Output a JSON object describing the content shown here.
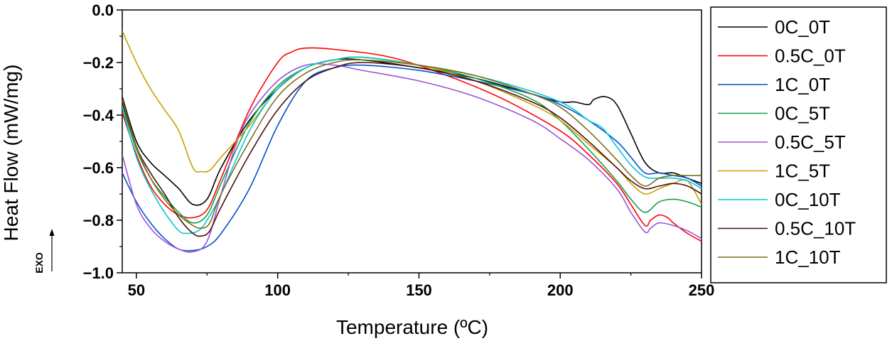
{
  "chart_data": {
    "type": "line",
    "title": "",
    "xlabel": "Temperature (ºC)",
    "ylabel": "Heat Flow (mW/mg)",
    "exo_label": "EXO",
    "xlim": [
      45,
      250
    ],
    "ylim": [
      -1.0,
      0.0
    ],
    "xticks": [
      50,
      100,
      150,
      200,
      250
    ],
    "xtick_labels": [
      "50",
      "100",
      "150",
      "200",
      "250"
    ],
    "yticks": [
      0.0,
      -0.2,
      -0.4,
      -0.6,
      -0.8,
      -1.0
    ],
    "ytick_labels": [
      "0.0",
      "−0.2",
      "−0.4",
      "−0.6",
      "−0.8",
      "−1.0"
    ],
    "legend_position": "right",
    "series": [
      {
        "name": "0C_0T",
        "color": "#000000",
        "points": [
          [
            45,
            -0.33
          ],
          [
            50,
            -0.5
          ],
          [
            55,
            -0.58
          ],
          [
            60,
            -0.63
          ],
          [
            65,
            -0.68
          ],
          [
            70,
            -0.74
          ],
          [
            75,
            -0.72
          ],
          [
            80,
            -0.6
          ],
          [
            90,
            -0.42
          ],
          [
            100,
            -0.3
          ],
          [
            110,
            -0.22
          ],
          [
            120,
            -0.19
          ],
          [
            130,
            -0.19
          ],
          [
            150,
            -0.22
          ],
          [
            170,
            -0.26
          ],
          [
            190,
            -0.32
          ],
          [
            200,
            -0.35
          ],
          [
            205,
            -0.35
          ],
          [
            210,
            -0.36
          ],
          [
            212,
            -0.34
          ],
          [
            216,
            -0.33
          ],
          [
            220,
            -0.36
          ],
          [
            225,
            -0.47
          ],
          [
            230,
            -0.58
          ],
          [
            235,
            -0.62
          ],
          [
            240,
            -0.62
          ],
          [
            245,
            -0.64
          ],
          [
            250,
            -0.66
          ]
        ]
      },
      {
        "name": "0.5C_0T",
        "color": "#ff0000",
        "points": [
          [
            45,
            -0.39
          ],
          [
            50,
            -0.55
          ],
          [
            55,
            -0.67
          ],
          [
            60,
            -0.74
          ],
          [
            65,
            -0.78
          ],
          [
            70,
            -0.79
          ],
          [
            75,
            -0.76
          ],
          [
            80,
            -0.64
          ],
          [
            90,
            -0.38
          ],
          [
            100,
            -0.2
          ],
          [
            105,
            -0.16
          ],
          [
            110,
            -0.145
          ],
          [
            120,
            -0.15
          ],
          [
            140,
            -0.18
          ],
          [
            160,
            -0.25
          ],
          [
            180,
            -0.34
          ],
          [
            200,
            -0.46
          ],
          [
            210,
            -0.55
          ],
          [
            220,
            -0.66
          ],
          [
            225,
            -0.74
          ],
          [
            230,
            -0.82
          ],
          [
            232,
            -0.8
          ],
          [
            235,
            -0.78
          ],
          [
            238,
            -0.79
          ],
          [
            240,
            -0.81
          ],
          [
            245,
            -0.85
          ],
          [
            250,
            -0.88
          ]
        ]
      },
      {
        "name": "1C_0T",
        "color": "#0050cc",
        "points": [
          [
            45,
            -0.62
          ],
          [
            50,
            -0.73
          ],
          [
            55,
            -0.81
          ],
          [
            60,
            -0.87
          ],
          [
            65,
            -0.91
          ],
          [
            70,
            -0.915
          ],
          [
            75,
            -0.9
          ],
          [
            80,
            -0.85
          ],
          [
            90,
            -0.68
          ],
          [
            100,
            -0.44
          ],
          [
            110,
            -0.27
          ],
          [
            120,
            -0.22
          ],
          [
            130,
            -0.21
          ],
          [
            150,
            -0.23
          ],
          [
            170,
            -0.27
          ],
          [
            190,
            -0.32
          ],
          [
            200,
            -0.36
          ],
          [
            210,
            -0.42
          ],
          [
            220,
            -0.5
          ],
          [
            225,
            -0.56
          ],
          [
            230,
            -0.62
          ],
          [
            235,
            -0.62
          ],
          [
            240,
            -0.63
          ],
          [
            245,
            -0.64
          ],
          [
            250,
            -0.67
          ]
        ]
      },
      {
        "name": "0C_5T",
        "color": "#1a9e50",
        "points": [
          [
            45,
            -0.36
          ],
          [
            50,
            -0.53
          ],
          [
            55,
            -0.64
          ],
          [
            60,
            -0.71
          ],
          [
            65,
            -0.77
          ],
          [
            70,
            -0.81
          ],
          [
            75,
            -0.78
          ],
          [
            80,
            -0.66
          ],
          [
            90,
            -0.43
          ],
          [
            100,
            -0.29
          ],
          [
            110,
            -0.22
          ],
          [
            120,
            -0.19
          ],
          [
            130,
            -0.18
          ],
          [
            150,
            -0.21
          ],
          [
            170,
            -0.26
          ],
          [
            190,
            -0.34
          ],
          [
            200,
            -0.42
          ],
          [
            210,
            -0.53
          ],
          [
            220,
            -0.65
          ],
          [
            225,
            -0.72
          ],
          [
            230,
            -0.77
          ],
          [
            235,
            -0.73
          ],
          [
            240,
            -0.72
          ],
          [
            245,
            -0.73
          ],
          [
            250,
            -0.75
          ]
        ]
      },
      {
        "name": "0.5C_5T",
        "color": "#9b55d6",
        "points": [
          [
            45,
            -0.55
          ],
          [
            50,
            -0.74
          ],
          [
            55,
            -0.83
          ],
          [
            60,
            -0.88
          ],
          [
            65,
            -0.91
          ],
          [
            70,
            -0.92
          ],
          [
            75,
            -0.88
          ],
          [
            80,
            -0.7
          ],
          [
            85,
            -0.52
          ],
          [
            90,
            -0.4
          ],
          [
            100,
            -0.27
          ],
          [
            110,
            -0.21
          ],
          [
            120,
            -0.21
          ],
          [
            130,
            -0.23
          ],
          [
            150,
            -0.27
          ],
          [
            170,
            -0.33
          ],
          [
            190,
            -0.42
          ],
          [
            200,
            -0.49
          ],
          [
            210,
            -0.57
          ],
          [
            220,
            -0.68
          ],
          [
            225,
            -0.77
          ],
          [
            230,
            -0.845
          ],
          [
            232,
            -0.83
          ],
          [
            235,
            -0.81
          ],
          [
            240,
            -0.82
          ],
          [
            245,
            -0.84
          ],
          [
            250,
            -0.87
          ]
        ]
      },
      {
        "name": "1C_5T",
        "color": "#c8a000",
        "points": [
          [
            45,
            -0.08
          ],
          [
            50,
            -0.2
          ],
          [
            55,
            -0.3
          ],
          [
            60,
            -0.38
          ],
          [
            65,
            -0.46
          ],
          [
            70,
            -0.6
          ],
          [
            73,
            -0.615
          ],
          [
            76,
            -0.61
          ],
          [
            80,
            -0.56
          ],
          [
            90,
            -0.44
          ],
          [
            100,
            -0.3
          ],
          [
            110,
            -0.22
          ],
          [
            120,
            -0.19
          ],
          [
            130,
            -0.18
          ],
          [
            150,
            -0.21
          ],
          [
            170,
            -0.27
          ],
          [
            190,
            -0.36
          ],
          [
            200,
            -0.42
          ],
          [
            210,
            -0.51
          ],
          [
            220,
            -0.6
          ],
          [
            225,
            -0.66
          ],
          [
            230,
            -0.7
          ],
          [
            235,
            -0.68
          ],
          [
            240,
            -0.66
          ],
          [
            245,
            -0.65
          ],
          [
            250,
            -0.74
          ]
        ]
      },
      {
        "name": "0C_10T",
        "color": "#00c8d8",
        "points": [
          [
            45,
            -0.37
          ],
          [
            50,
            -0.56
          ],
          [
            55,
            -0.68
          ],
          [
            60,
            -0.77
          ],
          [
            65,
            -0.84
          ],
          [
            68,
            -0.85
          ],
          [
            72,
            -0.84
          ],
          [
            75,
            -0.8
          ],
          [
            80,
            -0.7
          ],
          [
            90,
            -0.46
          ],
          [
            100,
            -0.3
          ],
          [
            110,
            -0.22
          ],
          [
            120,
            -0.19
          ],
          [
            130,
            -0.18
          ],
          [
            150,
            -0.21
          ],
          [
            170,
            -0.25
          ],
          [
            190,
            -0.31
          ],
          [
            200,
            -0.35
          ],
          [
            205,
            -0.38
          ],
          [
            210,
            -0.42
          ],
          [
            215,
            -0.45
          ],
          [
            220,
            -0.52
          ],
          [
            225,
            -0.59
          ],
          [
            230,
            -0.635
          ],
          [
            235,
            -0.64
          ],
          [
            240,
            -0.64
          ],
          [
            245,
            -0.65
          ],
          [
            250,
            -0.68
          ]
        ]
      },
      {
        "name": "0.5C_10T",
        "color": "#4b1010",
        "points": [
          [
            45,
            -0.35
          ],
          [
            50,
            -0.52
          ],
          [
            55,
            -0.62
          ],
          [
            60,
            -0.7
          ],
          [
            65,
            -0.79
          ],
          [
            70,
            -0.85
          ],
          [
            73,
            -0.86
          ],
          [
            76,
            -0.84
          ],
          [
            80,
            -0.75
          ],
          [
            90,
            -0.55
          ],
          [
            100,
            -0.38
          ],
          [
            110,
            -0.27
          ],
          [
            120,
            -0.22
          ],
          [
            130,
            -0.2
          ],
          [
            150,
            -0.22
          ],
          [
            170,
            -0.27
          ],
          [
            190,
            -0.35
          ],
          [
            200,
            -0.41
          ],
          [
            210,
            -0.5
          ],
          [
            220,
            -0.6
          ],
          [
            225,
            -0.65
          ],
          [
            230,
            -0.68
          ],
          [
            235,
            -0.67
          ],
          [
            240,
            -0.66
          ],
          [
            245,
            -0.67
          ],
          [
            250,
            -0.7
          ]
        ]
      },
      {
        "name": "1C_10T",
        "color": "#7a7018",
        "points": [
          [
            45,
            -0.34
          ],
          [
            50,
            -0.52
          ],
          [
            55,
            -0.64
          ],
          [
            60,
            -0.72
          ],
          [
            65,
            -0.78
          ],
          [
            70,
            -0.82
          ],
          [
            73,
            -0.83
          ],
          [
            76,
            -0.81
          ],
          [
            80,
            -0.7
          ],
          [
            90,
            -0.5
          ],
          [
            100,
            -0.33
          ],
          [
            110,
            -0.24
          ],
          [
            120,
            -0.2
          ],
          [
            130,
            -0.19
          ],
          [
            150,
            -0.21
          ],
          [
            170,
            -0.25
          ],
          [
            190,
            -0.32
          ],
          [
            200,
            -0.37
          ],
          [
            210,
            -0.46
          ],
          [
            220,
            -0.57
          ],
          [
            225,
            -0.63
          ],
          [
            230,
            -0.67
          ],
          [
            235,
            -0.64
          ],
          [
            240,
            -0.63
          ],
          [
            245,
            -0.63
          ],
          [
            250,
            -0.63
          ]
        ]
      }
    ]
  }
}
